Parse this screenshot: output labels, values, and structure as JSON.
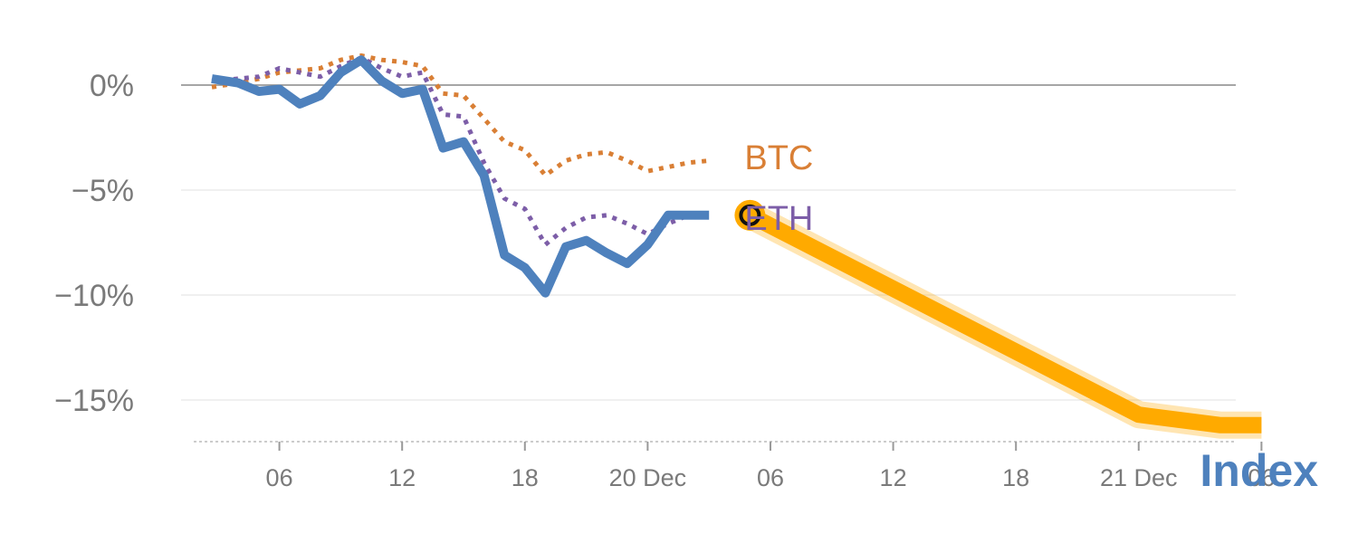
{
  "chart_data": {
    "type": "line",
    "title": "",
    "xlabel": "",
    "ylabel": "",
    "ylim": [
      -17,
      2.5
    ],
    "yticks": [
      0,
      -5,
      -10,
      -15
    ],
    "ytick_labels": [
      "0%",
      "−5%",
      "−10%",
      "−15%"
    ],
    "xticks": [
      {
        "t": 2,
        "label": "06"
      },
      {
        "t": 8,
        "label": "12"
      },
      {
        "t": 14,
        "label": "18"
      },
      {
        "t": 20,
        "label": "20 Dec"
      },
      {
        "t": 26,
        "label": "06"
      },
      {
        "t": 32,
        "label": "12"
      },
      {
        "t": 38,
        "label": "18"
      },
      {
        "t": 44,
        "label": "21 Dec"
      },
      {
        "t": 50,
        "label": "06"
      }
    ],
    "xlim": [
      -1.5,
      50
    ],
    "series": [
      {
        "name": "Index",
        "color": "#4e81bd",
        "style": "solid",
        "x": [
          -1.3,
          0,
          1,
          2,
          3,
          4,
          5,
          6,
          7,
          8,
          9,
          10,
          11,
          12,
          13,
          14,
          15,
          16,
          17,
          18,
          19,
          20,
          21,
          22,
          23,
          24,
          25
        ],
        "values": [
          0.3,
          0.1,
          -0.3,
          -0.2,
          -0.9,
          -0.5,
          0.6,
          1.2,
          0.2,
          -0.4,
          -0.2,
          -3.0,
          -2.7,
          -4.3,
          -8.1,
          -8.7,
          -9.9,
          -7.7,
          -7.4,
          -8.0,
          -8.5,
          -7.6,
          -6.2,
          -6.2,
          -6.2,
          null,
          null
        ]
      },
      {
        "name": "BTC",
        "color": "#d97f35",
        "style": "dotted",
        "x": [
          -1.3,
          0,
          1,
          2,
          3,
          4,
          5,
          6,
          7,
          8,
          9,
          10,
          11,
          12,
          13,
          14,
          15,
          16,
          17,
          18,
          19,
          20,
          21,
          22,
          23,
          24,
          25
        ],
        "values": [
          -0.1,
          0.1,
          0.3,
          0.6,
          0.7,
          0.8,
          1.2,
          1.4,
          1.2,
          1.1,
          0.9,
          -0.4,
          -0.5,
          -1.6,
          -2.7,
          -3.1,
          -4.3,
          -3.6,
          -3.3,
          -3.2,
          -3.6,
          -4.1,
          -3.9,
          -3.7,
          -3.6,
          null,
          null
        ]
      },
      {
        "name": "ETH",
        "color": "#7d5ea8",
        "style": "dotted",
        "x": [
          -1.3,
          0,
          1,
          2,
          3,
          4,
          5,
          6,
          7,
          8,
          9,
          10,
          11,
          12,
          13,
          14,
          15,
          16,
          17,
          18,
          19,
          20,
          21,
          22,
          23,
          24,
          25
        ],
        "values": [
          0.2,
          0.3,
          0.4,
          0.8,
          0.6,
          0.4,
          0.9,
          1.3,
          0.8,
          0.4,
          0.6,
          -1.4,
          -1.5,
          -3.7,
          -5.4,
          -5.9,
          -7.6,
          -6.8,
          -6.3,
          -6.2,
          -6.6,
          -7.1,
          -6.6,
          -6.2,
          -6.1,
          null,
          null
        ]
      }
    ],
    "projection": {
      "color": "#ffaa00",
      "x": [
        25,
        44,
        48,
        50
      ],
      "values": [
        -6.2,
        -15.7,
        -16.2,
        -16.2
      ]
    },
    "marker": {
      "x": 25,
      "value": -6.2
    },
    "labels": {
      "btc": {
        "text": "BTC",
        "x": 25,
        "value": -3.5,
        "color": "#d97f35"
      },
      "eth": {
        "text": "ETH",
        "x": 25,
        "value": -6.3,
        "color": "#7d5ea8"
      },
      "index": {
        "text": "Index",
        "color": "#4e81bd"
      }
    }
  }
}
